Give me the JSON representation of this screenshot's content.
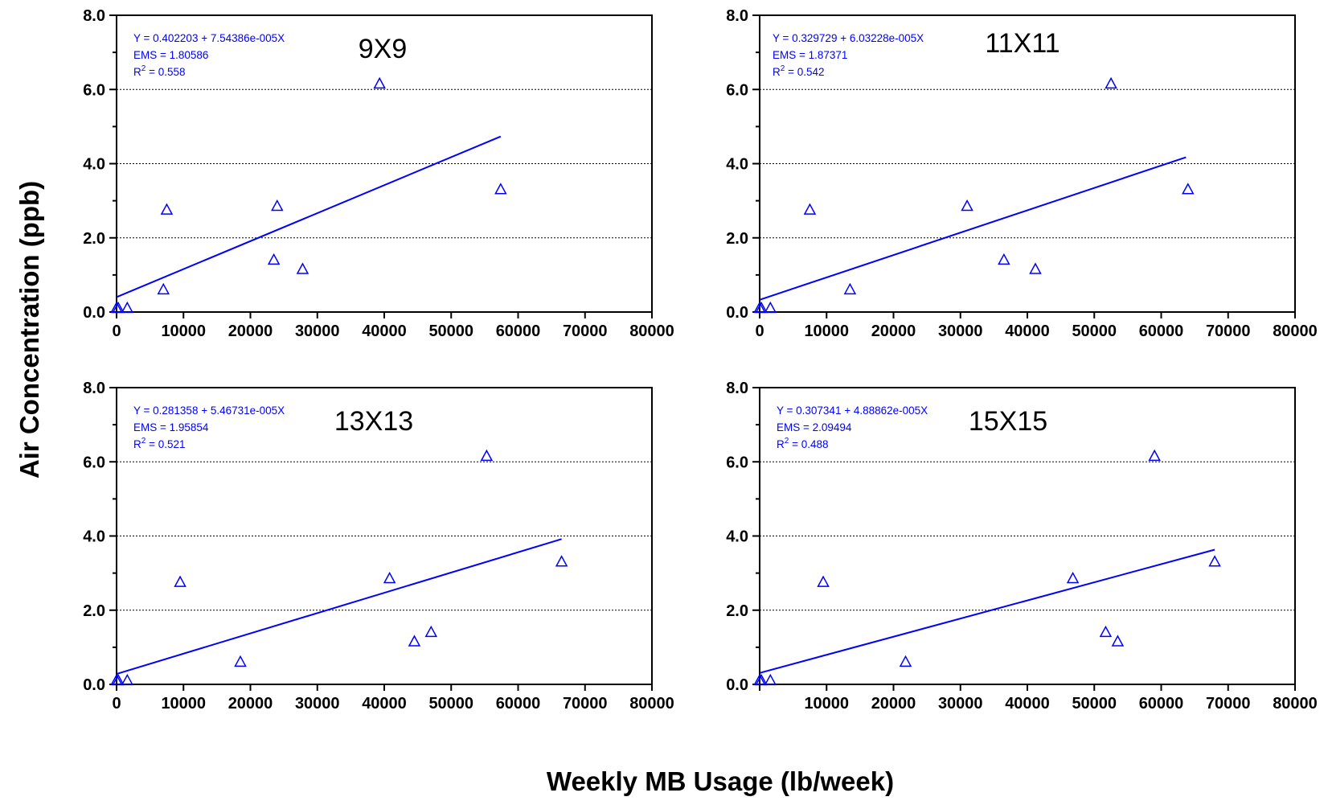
{
  "figure": {
    "xlabel": "Weekly MB Usage (lb/week)",
    "ylabel": "Air Concentration (ppb)"
  },
  "chart_data": [
    {
      "type": "scatter",
      "title": "9X9",
      "xlim": [
        0,
        80000
      ],
      "ylim": [
        0,
        8
      ],
      "x_ticks": [
        "0",
        "10000",
        "20000",
        "30000",
        "40000",
        "50000",
        "60000",
        "70000",
        "80000"
      ],
      "y_ticks": [
        "0.0",
        "2.0",
        "4.0",
        "6.0",
        "8.0"
      ],
      "grid": true,
      "points": [
        {
          "x": 0,
          "y": 0.1
        },
        {
          "x": 250,
          "y": 0.1
        },
        {
          "x": 1600,
          "y": 0.1
        },
        {
          "x": 7000,
          "y": 0.6
        },
        {
          "x": 7500,
          "y": 2.75
        },
        {
          "x": 23500,
          "y": 1.4
        },
        {
          "x": 24000,
          "y": 2.85
        },
        {
          "x": 27800,
          "y": 1.15
        },
        {
          "x": 39300,
          "y": 6.15
        },
        {
          "x": 57400,
          "y": 3.3
        }
      ],
      "fit": {
        "x": [
          0,
          57400
        ],
        "intercept": 0.402203,
        "slope": 7.54386e-05
      },
      "annotations": {
        "equation": "Y = 0.402203 + 7.54386e-005X",
        "ems": "EMS = 1.80586",
        "r2_prefix": "R",
        "r2_sup": "2",
        "r2_value": " = 0.558"
      }
    },
    {
      "type": "scatter",
      "title": "11X11",
      "xlim": [
        0,
        80000
      ],
      "ylim": [
        0,
        8
      ],
      "x_ticks": [
        "0",
        "10000",
        "20000",
        "30000",
        "40000",
        "50000",
        "60000",
        "70000",
        "80000"
      ],
      "y_ticks": [
        "0.0",
        "2.0",
        "4.0",
        "6.0",
        "8.0"
      ],
      "grid": true,
      "points": [
        {
          "x": 0,
          "y": 0.1
        },
        {
          "x": 250,
          "y": 0.1
        },
        {
          "x": 1600,
          "y": 0.1
        },
        {
          "x": 7500,
          "y": 2.75
        },
        {
          "x": 13500,
          "y": 0.6
        },
        {
          "x": 31000,
          "y": 2.85
        },
        {
          "x": 36500,
          "y": 1.4
        },
        {
          "x": 41200,
          "y": 1.15
        },
        {
          "x": 52500,
          "y": 6.15
        },
        {
          "x": 64000,
          "y": 3.3
        }
      ],
      "fit": {
        "x": [
          0,
          63700
        ],
        "intercept": 0.329729,
        "slope": 6.03228e-05
      },
      "annotations": {
        "equation": "Y = 0.329729 + 6.03228e-005X",
        "ems": "EMS = 1.87371",
        "r2_prefix": "R",
        "r2_sup": "2",
        "r2_value": " = 0.542"
      }
    },
    {
      "type": "scatter",
      "title": "13X13",
      "xlim": [
        0,
        80000
      ],
      "ylim": [
        0,
        8
      ],
      "x_ticks": [
        "0",
        "10000",
        "20000",
        "30000",
        "40000",
        "50000",
        "60000",
        "70000",
        "80000"
      ],
      "y_ticks": [
        "0.0",
        "2.0",
        "4.0",
        "6.0",
        "8.0"
      ],
      "grid": true,
      "points": [
        {
          "x": 0,
          "y": 0.1
        },
        {
          "x": 250,
          "y": 0.1
        },
        {
          "x": 1600,
          "y": 0.1
        },
        {
          "x": 9500,
          "y": 2.75
        },
        {
          "x": 18500,
          "y": 0.6
        },
        {
          "x": 40800,
          "y": 2.85
        },
        {
          "x": 44500,
          "y": 1.15
        },
        {
          "x": 47000,
          "y": 1.4
        },
        {
          "x": 55300,
          "y": 6.15
        },
        {
          "x": 66500,
          "y": 3.3
        }
      ],
      "fit": {
        "x": [
          0,
          66500
        ],
        "intercept": 0.281358,
        "slope": 5.46731e-05
      },
      "annotations": {
        "equation": "Y = 0.281358 + 5.46731e-005X",
        "ems": "EMS = 1.95854",
        "r2_prefix": "R",
        "r2_sup": "2",
        "r2_value": " = 0.521"
      }
    },
    {
      "type": "scatter",
      "title": "15X15",
      "xlim": [
        0,
        80000
      ],
      "ylim": [
        0,
        8
      ],
      "x_ticks": [
        "10000",
        "20000",
        "30000",
        "40000",
        "50000",
        "60000",
        "70000",
        "80000"
      ],
      "y_ticks": [
        "0.0",
        "2.0",
        "4.0",
        "6.0",
        "8.0"
      ],
      "grid": true,
      "points": [
        {
          "x": 0,
          "y": 0.1
        },
        {
          "x": 250,
          "y": 0.1
        },
        {
          "x": 1600,
          "y": 0.1
        },
        {
          "x": 9500,
          "y": 2.75
        },
        {
          "x": 21800,
          "y": 0.6
        },
        {
          "x": 46800,
          "y": 2.85
        },
        {
          "x": 51700,
          "y": 1.4
        },
        {
          "x": 53500,
          "y": 1.15
        },
        {
          "x": 59000,
          "y": 6.15
        },
        {
          "x": 68000,
          "y": 3.3
        }
      ],
      "fit": {
        "x": [
          0,
          68000
        ],
        "intercept": 0.307341,
        "slope": 4.88862e-05
      },
      "annotations": {
        "equation": "Y = 0.307341 + 4.88862e-005X",
        "ems": "EMS = 2.09494",
        "r2_prefix": "R",
        "r2_sup": "2",
        "r2_value": " = 0.488"
      }
    }
  ],
  "colors": {
    "series": "#0000ff",
    "axis": "#000000",
    "grid": "#000000"
  }
}
